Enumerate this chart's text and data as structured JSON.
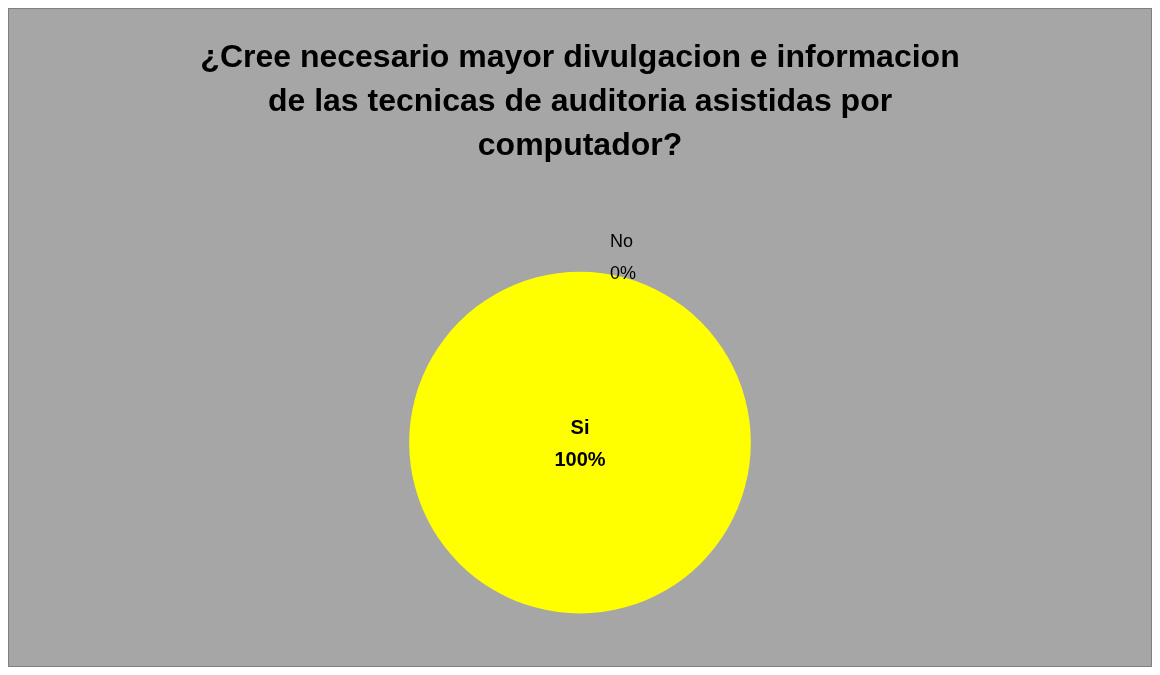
{
  "chart_data": {
    "type": "pie",
    "title": "¿Cree necesario mayor divulgacion e informacion\nde las tecnicas de auditoria asistidas por\ncomputador?",
    "categories": [
      "Si",
      "No"
    ],
    "values": [
      100,
      0
    ],
    "colors": [
      "#ffff00",
      "#c0504d"
    ],
    "value_labels": [
      "100%",
      "0%"
    ],
    "legend": false
  }
}
